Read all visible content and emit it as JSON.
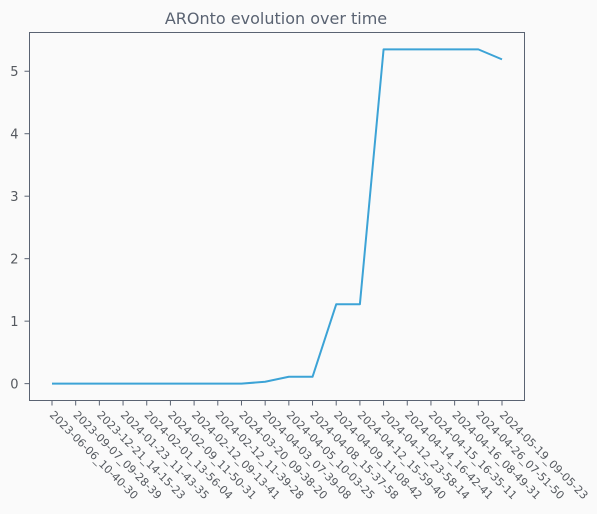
{
  "chart_data": {
    "type": "line",
    "title": "AROnto evolution over time",
    "xlabel": "",
    "ylabel": "",
    "categories": [
      "2023-06-06_10-40-30",
      "2023-09-07_09-28-39",
      "2023-12-21_14-15-23",
      "2024-01-23_11-43-35",
      "2024-02-01_13-56-04",
      "2024-02-09_11-50-31",
      "2024-02-12_09-13-41",
      "2024-02-12_11-39-28",
      "2024-03-20_09-38-20",
      "2024-04-03_07-39-08",
      "2024-04-05_10-03-25",
      "2024-04-08_15-37-58",
      "2024-04-09_11-08-42",
      "2024-04-12_15-59-40",
      "2024-04-12_23-58-14",
      "2024-04-14_16-42-41",
      "2024-04-15_16-35-11",
      "2024-04-16_08-49-31",
      "2024-04-26_07-51-50",
      "2024-05-19_09-05-23"
    ],
    "values": [
      0,
      0,
      0,
      0,
      0,
      0,
      0,
      0,
      0,
      0.03,
      0.11,
      0.11,
      1.27,
      1.27,
      5.35,
      5.35,
      5.35,
      5.35,
      5.35,
      5.19
    ],
    "ylim": [
      -0.27,
      5.62
    ],
    "yticks": [
      0,
      1,
      2,
      3,
      4,
      5
    ],
    "grid": false,
    "line_color": "#3ca3d6",
    "axis_color": "#5a6372",
    "text_color": "#55595f"
  }
}
